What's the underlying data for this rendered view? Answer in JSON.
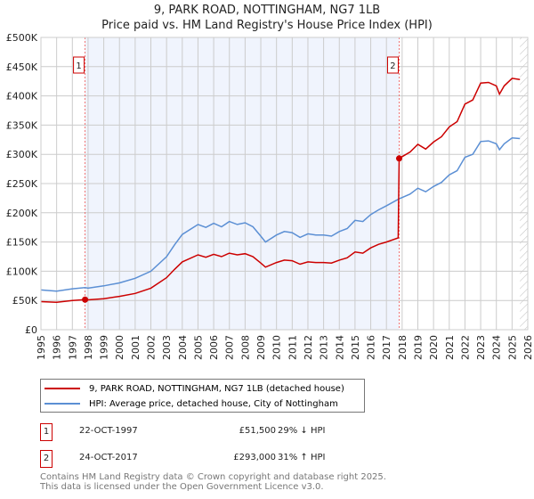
{
  "chart_data": {
    "type": "line",
    "title": "9, PARK ROAD, NOTTINGHAM, NG7 1LB",
    "subtitle": "Price paid vs. HM Land Registry's House Price Index (HPI)",
    "xlim": [
      1995,
      2026
    ],
    "ylim": [
      0,
      500000
    ],
    "x_ticks": [
      "1995",
      "1996",
      "1997",
      "1998",
      "1999",
      "2000",
      "2001",
      "2002",
      "2003",
      "2004",
      "2005",
      "2006",
      "2007",
      "2008",
      "2009",
      "2010",
      "2011",
      "2012",
      "2013",
      "2014",
      "2015",
      "2016",
      "2017",
      "2018",
      "2019",
      "2020",
      "2021",
      "2022",
      "2023",
      "2024",
      "2025",
      "2026"
    ],
    "y_ticks": [
      {
        "value": 0,
        "label": "£0"
      },
      {
        "value": 50000,
        "label": "£50K"
      },
      {
        "value": 100000,
        "label": "£100K"
      },
      {
        "value": 150000,
        "label": "£150K"
      },
      {
        "value": 200000,
        "label": "£200K"
      },
      {
        "value": 250000,
        "label": "£250K"
      },
      {
        "value": 300000,
        "label": "£300K"
      },
      {
        "value": 350000,
        "label": "£350K"
      },
      {
        "value": 400000,
        "label": "£400K"
      },
      {
        "value": 450000,
        "label": "£450K"
      },
      {
        "value": 500000,
        "label": "£500K"
      }
    ],
    "grid": true,
    "shaded_range": [
      1997.81,
      2017.81
    ],
    "hatched_from": 2025.5,
    "series": [
      {
        "name": "9, PARK ROAD, NOTTINGHAM, NG7 1LB (detached house)",
        "color": "#cc0000",
        "x": [
          1995,
          1996,
          1997,
          1997.81,
          1998,
          1999,
          2000,
          2001,
          2002,
          2003,
          2003.5,
          2004,
          2005,
          2005.5,
          2006,
          2006.5,
          2007,
          2007.5,
          2008,
          2008.5,
          2009,
          2009.3,
          2010,
          2010.5,
          2011,
          2011.5,
          2012,
          2012.5,
          2013,
          2013.5,
          2014,
          2014.5,
          2015,
          2015.5,
          2016,
          2016.5,
          2017,
          2017.75,
          2017.81,
          2018,
          2018.5,
          2019,
          2019.5,
          2020,
          2020.5,
          2021,
          2021.5,
          2022,
          2022.5,
          2023,
          2023.5,
          2024,
          2024.2,
          2024.5,
          2025,
          2025.5
        ],
        "y": [
          48000,
          47000,
          50000,
          51500,
          51000,
          53000,
          57000,
          62000,
          71000,
          89000,
          103000,
          116000,
          128000,
          124000,
          129000,
          125000,
          131000,
          128000,
          130000,
          125000,
          114000,
          107000,
          115000,
          119000,
          118000,
          112000,
          116000,
          115000,
          115000,
          114000,
          119000,
          123000,
          133000,
          131000,
          140000,
          146000,
          150000,
          157000,
          293000,
          296000,
          304000,
          317000,
          309000,
          321000,
          330000,
          347000,
          356000,
          386000,
          393000,
          422000,
          423000,
          417000,
          403000,
          417000,
          430000,
          428000
        ]
      },
      {
        "name": "HPI: Average price, detached house, City of Nottingham",
        "color": "#5b8fd4",
        "x": [
          1995,
          1996,
          1997,
          1997.81,
          1998,
          1999,
          2000,
          2001,
          2002,
          2003,
          2003.5,
          2004,
          2005,
          2005.5,
          2006,
          2006.5,
          2007,
          2007.5,
          2008,
          2008.5,
          2009,
          2009.3,
          2010,
          2010.5,
          2011,
          2011.5,
          2012,
          2012.5,
          2013,
          2013.5,
          2014,
          2014.5,
          2015,
          2015.5,
          2016,
          2016.5,
          2017,
          2017.81,
          2018,
          2018.5,
          2019,
          2019.5,
          2020,
          2020.5,
          2021,
          2021.5,
          2022,
          2022.5,
          2023,
          2023.5,
          2024,
          2024.2,
          2024.5,
          2025,
          2025.5
        ],
        "y": [
          68000,
          66000,
          70000,
          72000,
          71000,
          75000,
          80000,
          88000,
          100000,
          125000,
          145000,
          163000,
          180000,
          175000,
          182000,
          176000,
          185000,
          180000,
          183000,
          176000,
          160000,
          150000,
          162000,
          168000,
          166000,
          158000,
          164000,
          162000,
          162000,
          160000,
          168000,
          173000,
          187000,
          185000,
          197000,
          205000,
          212000,
          224000,
          226000,
          232000,
          242000,
          236000,
          245000,
          252000,
          265000,
          272000,
          295000,
          300000,
          322000,
          323000,
          318000,
          308000,
          318000,
          328000,
          327000
        ]
      }
    ],
    "sales": [
      {
        "label": "1",
        "x": 1997.81,
        "y": 51500,
        "date": "22-OCT-1997",
        "price": "£51,500",
        "hpi": "29% ↓ HPI"
      },
      {
        "label": "2",
        "x": 2017.81,
        "y": 293000,
        "date": "24-OCT-2017",
        "price": "£293,000",
        "hpi": "31% ↑ HPI"
      }
    ]
  },
  "footer": {
    "line1": "Contains HM Land Registry data © Crown copyright and database right 2025.",
    "line2": "This data is licensed under the Open Government Licence v3.0."
  }
}
